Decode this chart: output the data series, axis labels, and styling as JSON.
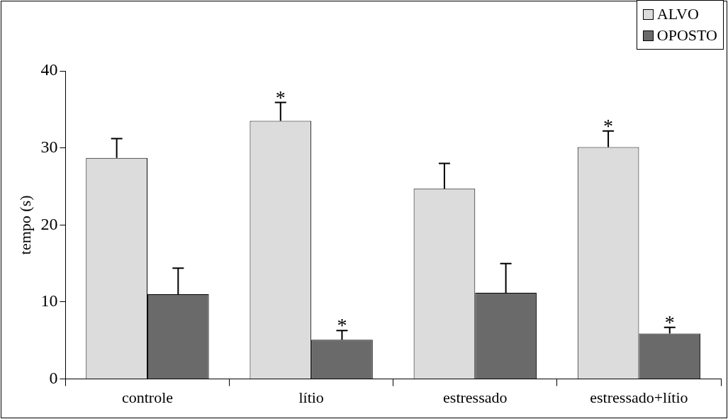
{
  "chart_data": {
    "type": "bar",
    "ylabel": "tempo (s)",
    "categories": [
      "controle",
      "lítio",
      "estressado",
      "estressado+lítio"
    ],
    "series": [
      {
        "name": "ALVO",
        "color": "#dcdcdc",
        "values": [
          28.7,
          33.5,
          24.7,
          30.1
        ],
        "errors": [
          [
            28.7,
            31.2
          ],
          [
            33.5,
            35.9
          ],
          [
            24.7,
            28.0
          ],
          [
            30.1,
            32.2
          ]
        ]
      },
      {
        "name": "OPOSTO",
        "color": "#6a6a6a",
        "values": [
          11.0,
          5.1,
          11.2,
          5.9
        ],
        "errors": [
          [
            11.0,
            14.4
          ],
          [
            5.1,
            6.3
          ],
          [
            11.2,
            15.0
          ],
          [
            5.9,
            6.7
          ]
        ]
      }
    ],
    "ylim": [
      0,
      40
    ],
    "yticks": [
      0,
      10,
      20,
      30,
      40
    ],
    "grid": false,
    "legend": "top right",
    "annotations": [
      {
        "text": "*",
        "x": "lítio",
        "y": 33.5
      },
      {
        "text": "*",
        "x": "lítio",
        "y": 5.1
      },
      {
        "text": "*",
        "x": "estressado+lítio",
        "y": 30.1
      },
      {
        "text": "*",
        "x": "estressado+lítio",
        "y": 5.9
      }
    ]
  }
}
